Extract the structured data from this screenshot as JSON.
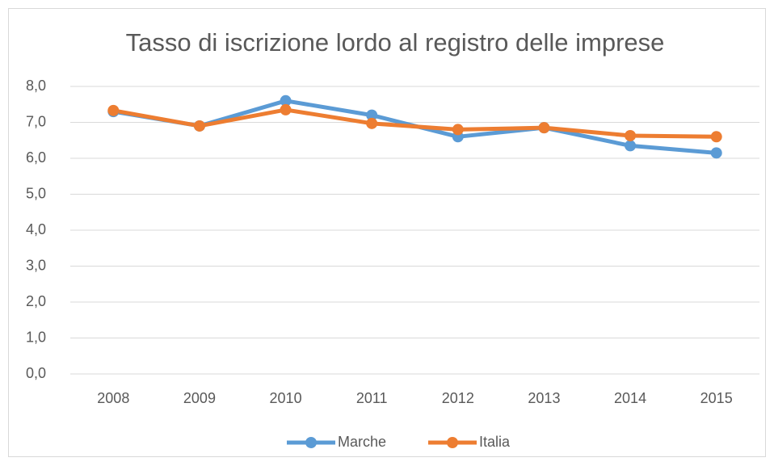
{
  "chart_data": {
    "type": "line",
    "title": "Tasso di iscrizione lordo al registro delle imprese",
    "categories": [
      "2008",
      "2009",
      "2010",
      "2011",
      "2012",
      "2013",
      "2014",
      "2015"
    ],
    "series": [
      {
        "name": "Marche",
        "color": "#5b9bd5",
        "values": [
          7.3,
          6.9,
          7.6,
          7.2,
          6.6,
          6.85,
          6.35,
          6.15
        ]
      },
      {
        "name": "Italia",
        "color": "#ed7d31",
        "values": [
          7.33,
          6.9,
          7.35,
          6.97,
          6.8,
          6.85,
          6.63,
          6.6
        ]
      }
    ],
    "ylim": [
      0,
      8
    ],
    "yticks": [
      {
        "value": 0,
        "label": "0,0"
      },
      {
        "value": 1,
        "label": "1,0"
      },
      {
        "value": 2,
        "label": "2,0"
      },
      {
        "value": 3,
        "label": "3,0"
      },
      {
        "value": 4,
        "label": "4,0"
      },
      {
        "value": 5,
        "label": "5,0"
      },
      {
        "value": 6,
        "label": "6,0"
      },
      {
        "value": 7,
        "label": "7,0"
      },
      {
        "value": 8,
        "label": "8,0"
      }
    ],
    "grid": true,
    "legend": "bottom"
  }
}
